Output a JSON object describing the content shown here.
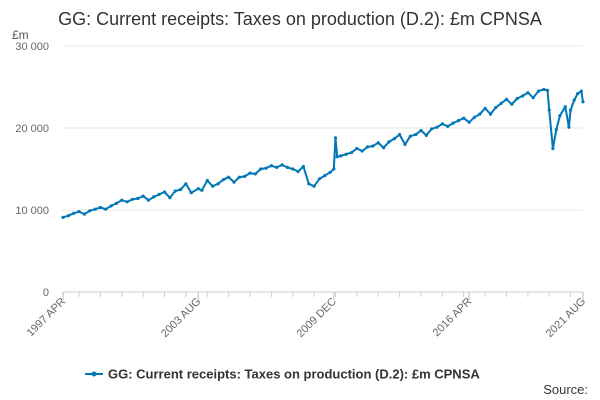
{
  "chart_data": {
    "type": "line",
    "title": "GG: Current receipts: Taxes on production (D.2): £m CPNSA",
    "ylabel": "£m",
    "xlabel": "",
    "ylim": [
      0,
      30000
    ],
    "y_ticks": [
      0,
      10000,
      20000,
      30000
    ],
    "y_tick_labels": [
      "0",
      "10 000",
      "20 000",
      "30 000"
    ],
    "x_range": [
      1997.25,
      2021.58
    ],
    "x_ticks": [
      1997.25,
      2003.58,
      2009.92,
      2016.25,
      2021.58
    ],
    "x_tick_labels": [
      "1997 APR",
      "2003 AUG",
      "2009 DEC",
      "2016 APR",
      "2021 AUG"
    ],
    "grid": true,
    "legend_position": "bottom",
    "series": [
      {
        "name": "GG: Current receipts: Taxes on production (D.2): £m CPNSA",
        "color": "#0077b6",
        "x": [
          1997.25,
          1997.5,
          1997.75,
          1998.0,
          1998.25,
          1998.5,
          1998.75,
          1999.0,
          1999.25,
          1999.5,
          1999.75,
          2000.0,
          2000.25,
          2000.5,
          2000.75,
          2001.0,
          2001.25,
          2001.5,
          2001.75,
          2002.0,
          2002.25,
          2002.5,
          2002.75,
          2003.0,
          2003.25,
          2003.58,
          2003.75,
          2004.0,
          2004.25,
          2004.5,
          2004.75,
          2005.0,
          2005.25,
          2005.5,
          2005.75,
          2006.0,
          2006.25,
          2006.5,
          2006.75,
          2007.0,
          2007.25,
          2007.5,
          2007.75,
          2008.0,
          2008.25,
          2008.5,
          2008.75,
          2009.0,
          2009.25,
          2009.5,
          2009.75,
          2009.92,
          2010.0,
          2010.08,
          2010.25,
          2010.5,
          2010.75,
          2011.0,
          2011.25,
          2011.5,
          2011.75,
          2012.0,
          2012.25,
          2012.5,
          2012.75,
          2013.0,
          2013.25,
          2013.5,
          2013.75,
          2014.0,
          2014.25,
          2014.5,
          2014.75,
          2015.0,
          2015.25,
          2015.5,
          2015.75,
          2016.0,
          2016.25,
          2016.5,
          2016.75,
          2017.0,
          2017.25,
          2017.5,
          2017.75,
          2018.0,
          2018.25,
          2018.5,
          2018.75,
          2019.0,
          2019.25,
          2019.5,
          2019.75,
          2019.92,
          2020.0,
          2020.17,
          2020.33,
          2020.5,
          2020.75,
          2020.92,
          2021.0,
          2021.17,
          2021.33,
          2021.5,
          2021.58
        ],
        "values": [
          9100,
          9300,
          9600,
          9800,
          9500,
          9900,
          10100,
          10300,
          10100,
          10500,
          10800,
          11200,
          11000,
          11300,
          11400,
          11700,
          11200,
          11600,
          11900,
          12200,
          11500,
          12300,
          12500,
          13200,
          12100,
          12600,
          12400,
          13600,
          12900,
          13200,
          13700,
          14000,
          13400,
          14000,
          14100,
          14500,
          14400,
          15000,
          15100,
          15400,
          15200,
          15500,
          15200,
          15000,
          14700,
          15300,
          13200,
          12900,
          13800,
          14200,
          14600,
          15000,
          18800,
          16500,
          16600,
          16800,
          17000,
          17500,
          17200,
          17700,
          17800,
          18200,
          17600,
          18300,
          18700,
          19200,
          18000,
          19000,
          19200,
          19700,
          19100,
          19900,
          20100,
          20500,
          20200,
          20600,
          20900,
          21200,
          20700,
          21300,
          21700,
          22400,
          21700,
          22500,
          23000,
          23500,
          22900,
          23600,
          23900,
          24300,
          23700,
          24500,
          24700,
          24600,
          22200,
          17500,
          19800,
          21500,
          22600,
          20100,
          22200,
          23400,
          24200,
          24500,
          23200
        ]
      }
    ]
  },
  "legend": {
    "label": "GG: Current receipts: Taxes on production (D.2): £m CPNSA"
  },
  "footer": {
    "source_label": "Source:"
  }
}
